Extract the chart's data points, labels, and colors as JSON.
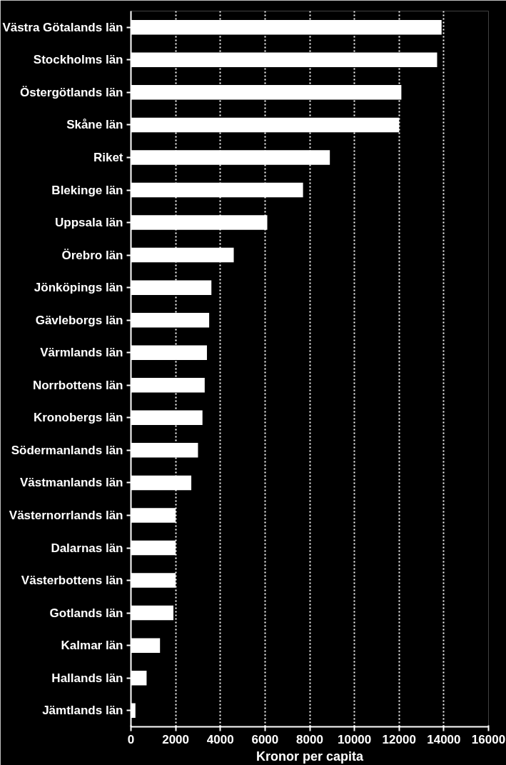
{
  "chart_data": {
    "type": "bar",
    "orientation": "horizontal",
    "xlabel": "Kronor per capita",
    "categories": [
      "Västra Götalands län",
      "Stockholms län",
      "Östergötlands län",
      "Skåne län",
      "Riket",
      "Blekinge län",
      "Uppsala län",
      "Örebro län",
      "Jönköpings län",
      "Gävleborgs län",
      "Värmlands län",
      "Norrbottens län",
      "Kronobergs län",
      "Södermanlands län",
      "Västmanlands län",
      "Västernorrlands län",
      "Dalarnas län",
      "Västerbottens län",
      "Gotlands län",
      "Kalmar län",
      "Hallands län",
      "Jämtlands län"
    ],
    "values": [
      13900,
      13700,
      12100,
      12000,
      8900,
      7700,
      6100,
      4600,
      3600,
      3500,
      3400,
      3300,
      3200,
      3000,
      2700,
      2000,
      2000,
      2000,
      1900,
      1300,
      700,
      200
    ],
    "color": "#ffffff",
    "xlim": [
      0,
      16000
    ],
    "xticks": [
      0,
      2000,
      4000,
      6000,
      8000,
      10000,
      12000,
      14000,
      16000
    ],
    "grid": "x"
  }
}
